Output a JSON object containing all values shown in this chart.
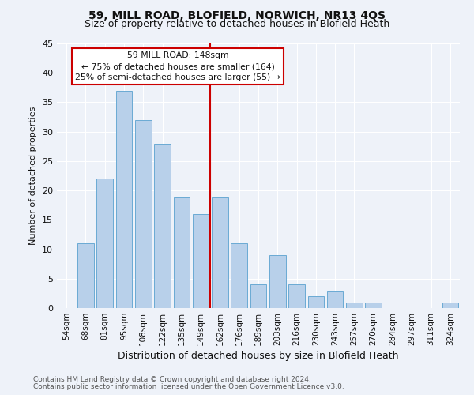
{
  "title": "59, MILL ROAD, BLOFIELD, NORWICH, NR13 4QS",
  "subtitle": "Size of property relative to detached houses in Blofield Heath",
  "xlabel": "Distribution of detached houses by size in Blofield Heath",
  "ylabel": "Number of detached properties",
  "footer1": "Contains HM Land Registry data © Crown copyright and database right 2024.",
  "footer2": "Contains public sector information licensed under the Open Government Licence v3.0.",
  "annotation_title": "59 MILL ROAD: 148sqm",
  "annotation_line1": "← 75% of detached houses are smaller (164)",
  "annotation_line2": "25% of semi-detached houses are larger (55) →",
  "bar_labels": [
    "54sqm",
    "68sqm",
    "81sqm",
    "95sqm",
    "108sqm",
    "122sqm",
    "135sqm",
    "149sqm",
    "162sqm",
    "176sqm",
    "189sqm",
    "203sqm",
    "216sqm",
    "230sqm",
    "243sqm",
    "257sqm",
    "270sqm",
    "284sqm",
    "297sqm",
    "311sqm",
    "324sqm"
  ],
  "bar_values": [
    0,
    11,
    22,
    37,
    32,
    28,
    19,
    16,
    19,
    11,
    4,
    9,
    4,
    2,
    3,
    1,
    1,
    0,
    0,
    0,
    1
  ],
  "bar_color": "#b8d0ea",
  "bar_edge_color": "#6aaad4",
  "vline_x_index": 7.5,
  "vline_color": "#cc0000",
  "ylim": [
    0,
    45
  ],
  "yticks": [
    0,
    5,
    10,
    15,
    20,
    25,
    30,
    35,
    40,
    45
  ],
  "bg_color": "#eef2f9",
  "grid_color": "#ffffff",
  "title_fontsize": 10,
  "subtitle_fontsize": 9,
  "ylabel_fontsize": 8,
  "xlabel_fontsize": 9,
  "tick_fontsize": 7.5,
  "annotation_box_color": "#cc0000",
  "text_color": "#111111",
  "footer_color": "#555555",
  "footer_fontsize": 6.5
}
